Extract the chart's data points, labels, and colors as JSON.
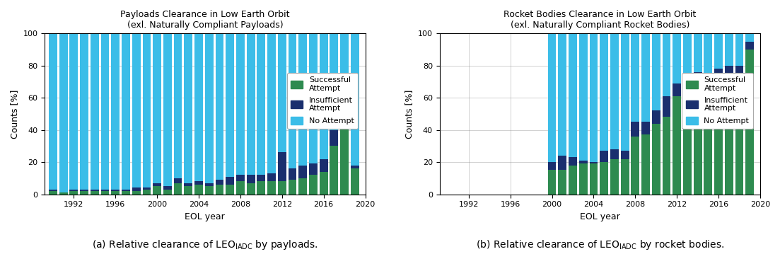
{
  "payloads": {
    "title": "Payloads Clearance in Low Earth Orbit\n(exl. Naturally Compliant Payloads)",
    "years": [
      1990,
      1991,
      1992,
      1993,
      1994,
      1995,
      1996,
      1997,
      1998,
      1999,
      2000,
      2001,
      2002,
      2003,
      2004,
      2005,
      2006,
      2007,
      2008,
      2009,
      2010,
      2011,
      2012,
      2013,
      2014,
      2015,
      2016,
      2017,
      2018,
      2019
    ],
    "successful": [
      2,
      1,
      2,
      2,
      2,
      2,
      2,
      2,
      2,
      3,
      5,
      3,
      7,
      5,
      6,
      5,
      6,
      6,
      8,
      7,
      8,
      8,
      8,
      9,
      10,
      12,
      14,
      30,
      44,
      16
    ],
    "insufficient": [
      1,
      0,
      1,
      1,
      1,
      1,
      1,
      1,
      2,
      1,
      2,
      2,
      3,
      2,
      2,
      2,
      3,
      5,
      4,
      5,
      4,
      5,
      18,
      7,
      8,
      7,
      8,
      10,
      2,
      2
    ],
    "no_attempt": [
      97,
      99,
      97,
      97,
      97,
      97,
      97,
      97,
      96,
      96,
      93,
      95,
      90,
      93,
      92,
      93,
      91,
      89,
      88,
      88,
      88,
      87,
      74,
      84,
      82,
      81,
      78,
      60,
      54,
      82
    ]
  },
  "rocket_bodies": {
    "title": "Rocket Bodies Clearance in Low Earth Orbit\n(exl. Naturally Compliant Rocket Bodies)",
    "years": [
      1990,
      1991,
      1992,
      1993,
      1994,
      1995,
      1996,
      1997,
      1998,
      1999,
      2000,
      2001,
      2002,
      2003,
      2004,
      2005,
      2006,
      2007,
      2008,
      2009,
      2010,
      2011,
      2012,
      2013,
      2014,
      2015,
      2016,
      2017,
      2018,
      2019
    ],
    "successful": [
      0,
      0,
      0,
      0,
      0,
      0,
      0,
      0,
      0,
      0,
      15,
      15,
      18,
      19,
      19,
      20,
      22,
      22,
      36,
      37,
      44,
      48,
      61,
      47,
      46,
      65,
      65,
      66,
      73,
      90
    ],
    "insufficient": [
      0,
      0,
      0,
      0,
      0,
      0,
      0,
      0,
      0,
      0,
      5,
      9,
      5,
      2,
      1,
      7,
      6,
      5,
      9,
      8,
      8,
      13,
      8,
      23,
      30,
      10,
      13,
      14,
      7,
      5
    ],
    "no_attempt": [
      0,
      0,
      0,
      0,
      0,
      0,
      0,
      0,
      0,
      0,
      80,
      76,
      77,
      79,
      80,
      73,
      72,
      73,
      55,
      55,
      48,
      39,
      31,
      30,
      24,
      25,
      22,
      20,
      20,
      5
    ]
  },
  "colors": {
    "successful": "#2e8b50",
    "insufficient": "#1a2f6e",
    "no_attempt": "#3bbde8"
  },
  "xlabel": "EOL year",
  "ylabel": "Counts [%]",
  "ylim": [
    0,
    100
  ],
  "xtick_years": [
    1992,
    1996,
    2000,
    2004,
    2008,
    2012,
    2016,
    2020
  ],
  "yticks": [
    0,
    20,
    40,
    60,
    80,
    100
  ],
  "legend_labels": [
    "Successful\nAttempt",
    "Insufficient\nAttempt",
    "No Attempt"
  ],
  "bar_width": 0.8
}
